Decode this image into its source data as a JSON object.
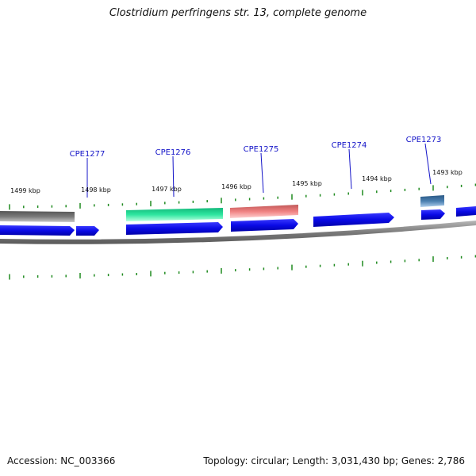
{
  "title": "Clostridium perfringens str. 13, complete genome",
  "footer": {
    "accession": "Accession: NC_003366",
    "summary": "Topology: circular; Length: 3,031,430 bp; Genes: 2,786"
  },
  "scale_labels": [
    {
      "text": "1499 kbp",
      "kbp": 1499
    },
    {
      "text": "1498 kbp",
      "kbp": 1498
    },
    {
      "text": "1497 kbp",
      "kbp": 1497
    },
    {
      "text": "1496 kbp",
      "kbp": 1496
    },
    {
      "text": "1495 kbp",
      "kbp": 1495
    },
    {
      "text": "1494 kbp",
      "kbp": 1494
    },
    {
      "text": "1493 kbp",
      "kbp": 1493
    }
  ],
  "gene_labels": [
    {
      "name": "CPE1277"
    },
    {
      "name": "CPE1276"
    },
    {
      "name": "CPE1275"
    },
    {
      "name": "CPE1274"
    },
    {
      "name": "CPE1273"
    }
  ],
  "colors": {
    "cds_arrow": "#0a0ae6",
    "label_text": "#1414c8",
    "tick": "#1f8a1f",
    "backbone": "#8c8c8c",
    "feature_gray": "#6e6e6e",
    "feature_green": "#2ee6a0",
    "feature_pink": "#f08282",
    "feature_steel": "#4a7fb0"
  }
}
